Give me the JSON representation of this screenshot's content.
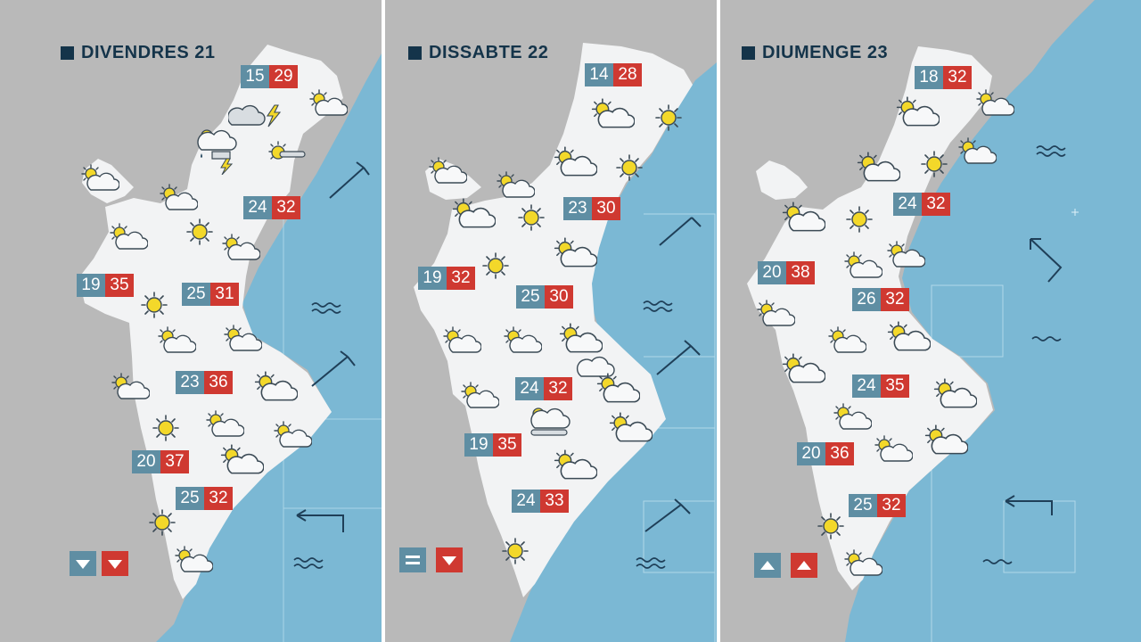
{
  "colors": {
    "sea": "#7bb8d4",
    "land": "#f2f3f4",
    "outside": "#b9b9b9",
    "min_badge": "#5f8ea3",
    "max_badge": "#cf3931",
    "title": "#14344a",
    "sun": "#f3d82a",
    "arrow": "#1f3f58"
  },
  "panels": [
    {
      "day": "DIVENDRES 21",
      "temps": [
        {
          "min": "15",
          "max": "29"
        },
        {
          "min": "24",
          "max": "32"
        },
        {
          "min": "19",
          "max": "35"
        },
        {
          "min": "25",
          "max": "31"
        },
        {
          "min": "23",
          "max": "36"
        },
        {
          "min": "20",
          "max": "37"
        },
        {
          "min": "25",
          "max": "32"
        }
      ],
      "legend": [
        "down",
        "down"
      ]
    },
    {
      "day": "DISSABTE 22",
      "temps": [
        {
          "min": "14",
          "max": "28"
        },
        {
          "min": "23",
          "max": "30"
        },
        {
          "min": "19",
          "max": "32"
        },
        {
          "min": "25",
          "max": "30"
        },
        {
          "min": "24",
          "max": "32"
        },
        {
          "min": "19",
          "max": "35"
        },
        {
          "min": "24",
          "max": "33"
        }
      ],
      "legend": [
        "equal",
        "down"
      ]
    },
    {
      "day": "DIUMENGE 23",
      "temps": [
        {
          "min": "18",
          "max": "32"
        },
        {
          "min": "24",
          "max": "32"
        },
        {
          "min": "20",
          "max": "38"
        },
        {
          "min": "26",
          "max": "32"
        },
        {
          "min": "24",
          "max": "35"
        },
        {
          "min": "20",
          "max": "36"
        },
        {
          "min": "25",
          "max": "32"
        }
      ],
      "legend": [
        "up",
        "up"
      ]
    }
  ]
}
